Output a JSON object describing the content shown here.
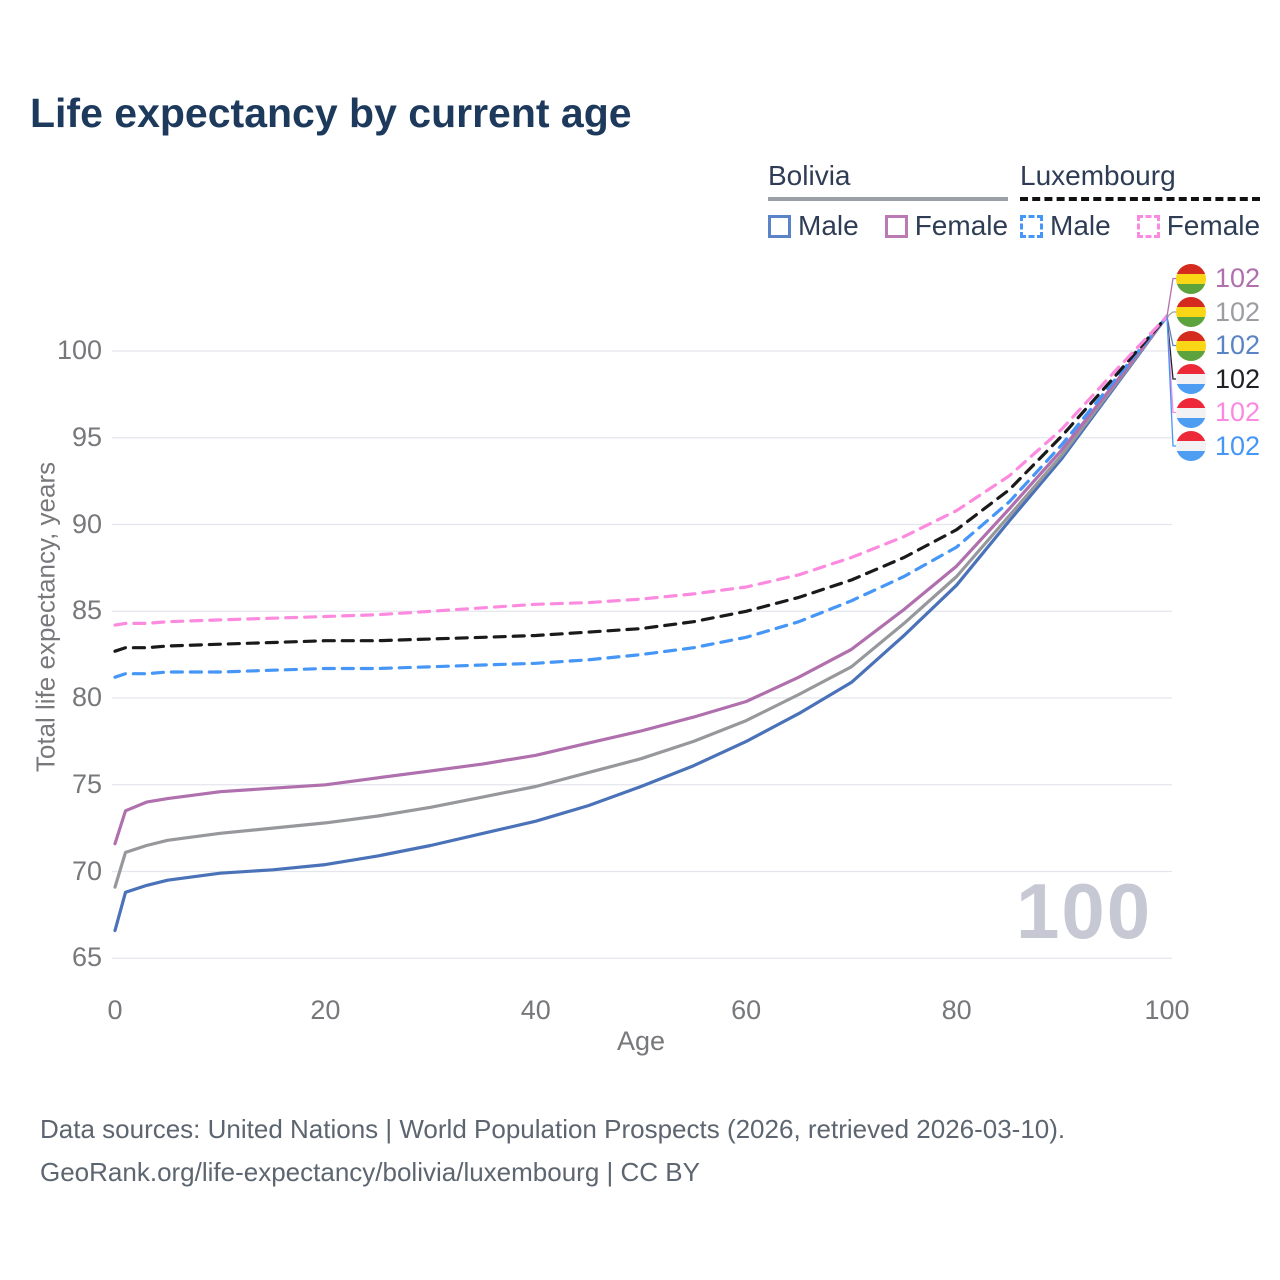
{
  "title": "Life expectancy by current age",
  "legend": {
    "bolivia": {
      "title": "Bolivia",
      "male": "Male",
      "female": "Female"
    },
    "luxembourg": {
      "title": "Luxembourg",
      "male": "Male",
      "female": "Female"
    }
  },
  "axes": {
    "y_title": "Total life expectancy, years",
    "x_title": "Age"
  },
  "watermark": "100",
  "footer": {
    "line1": "Data sources: United Nations | World Population Prospects (2026, retrieved 2026-03-10).",
    "line2": "GeoRank.org/life-expectancy/bolivia/luxembourg | CC BY"
  },
  "flags": {
    "bolivia": [
      "#d52b1e",
      "#f9d616",
      "#5ca23d"
    ],
    "luxembourg": [
      "#ed2939",
      "#f2f2f4",
      "#4d9df2"
    ]
  },
  "colors": {
    "title": "#1d3a5c",
    "bolivia_male": "#4a72b8",
    "bolivia_female": "#b06fad",
    "bolivia_both": "#97989c",
    "luxembourg_male": "#4596f7",
    "luxembourg_female": "#fc8be0",
    "luxembourg_both": "#1a1a1a",
    "gridline": "#e4e6ee",
    "axis_text": "#77787c"
  },
  "chart_data": {
    "type": "line",
    "title": "Life expectancy by current age",
    "xlabel": "Age",
    "ylabel": "Total life expectancy, years",
    "xlim": [
      0,
      100
    ],
    "ylim": [
      65,
      102
    ],
    "xticks": [
      0,
      20,
      40,
      60,
      80,
      100
    ],
    "yticks": [
      65,
      70,
      75,
      80,
      85,
      90,
      95,
      100
    ],
    "grid": true,
    "legend_position": "top-right",
    "series": [
      {
        "name": "Bolivia Male",
        "country": "Bolivia",
        "sex": "male",
        "color": "#4a72b8",
        "dash": false,
        "x": [
          0,
          1,
          3,
          5,
          10,
          15,
          20,
          25,
          30,
          35,
          40,
          45,
          50,
          55,
          60,
          65,
          70,
          75,
          80,
          85,
          90,
          95,
          100
        ],
        "y": [
          66.6,
          68.8,
          69.2,
          69.5,
          69.9,
          70.1,
          70.4,
          70.9,
          71.5,
          72.2,
          72.9,
          73.8,
          74.9,
          76.1,
          77.5,
          79.1,
          80.9,
          83.6,
          86.5,
          90.2,
          93.8,
          97.9,
          102
        ]
      },
      {
        "name": "Bolivia Both sexes",
        "country": "Bolivia",
        "sex": "both",
        "color": "#97989c",
        "dash": false,
        "x": [
          0,
          1,
          3,
          5,
          10,
          15,
          20,
          25,
          30,
          35,
          40,
          45,
          50,
          55,
          60,
          65,
          70,
          75,
          80,
          85,
          90,
          95,
          100
        ],
        "y": [
          69.1,
          71.1,
          71.5,
          71.8,
          72.2,
          72.5,
          72.8,
          73.2,
          73.7,
          74.3,
          74.9,
          75.7,
          76.5,
          77.5,
          78.7,
          80.2,
          81.8,
          84.3,
          87.0,
          90.5,
          94.0,
          98.0,
          102
        ]
      },
      {
        "name": "Bolivia Female",
        "country": "Bolivia",
        "sex": "female",
        "color": "#b06fad",
        "dash": false,
        "x": [
          0,
          1,
          3,
          5,
          10,
          15,
          20,
          25,
          30,
          35,
          40,
          45,
          50,
          55,
          60,
          65,
          70,
          75,
          80,
          85,
          90,
          95,
          100
        ],
        "y": [
          71.6,
          73.5,
          74.0,
          74.2,
          74.6,
          74.8,
          75.0,
          75.4,
          75.8,
          76.2,
          76.7,
          77.4,
          78.1,
          78.9,
          79.8,
          81.2,
          82.8,
          85.1,
          87.6,
          90.9,
          94.3,
          98.1,
          102
        ]
      },
      {
        "name": "Luxembourg Male",
        "country": "Luxembourg",
        "sex": "male",
        "color": "#4596f7",
        "dash": true,
        "x": [
          0,
          1,
          3,
          5,
          10,
          15,
          20,
          25,
          30,
          35,
          40,
          45,
          50,
          55,
          60,
          65,
          70,
          75,
          80,
          85,
          90,
          95,
          100
        ],
        "y": [
          81.2,
          81.4,
          81.4,
          81.5,
          81.5,
          81.6,
          81.7,
          81.7,
          81.8,
          81.9,
          82.0,
          82.2,
          82.5,
          82.9,
          83.5,
          84.4,
          85.6,
          87.0,
          88.7,
          91.3,
          94.6,
          98.3,
          102
        ]
      },
      {
        "name": "Luxembourg Both sexes",
        "country": "Luxembourg",
        "sex": "both",
        "color": "#1a1a1a",
        "dash": true,
        "x": [
          0,
          1,
          3,
          5,
          10,
          15,
          20,
          25,
          30,
          35,
          40,
          45,
          50,
          55,
          60,
          65,
          70,
          75,
          80,
          85,
          90,
          95,
          100
        ],
        "y": [
          82.7,
          82.9,
          82.9,
          83.0,
          83.1,
          83.2,
          83.3,
          83.3,
          83.4,
          83.5,
          83.6,
          83.8,
          84.0,
          84.4,
          85.0,
          85.8,
          86.8,
          88.1,
          89.7,
          92.0,
          95.1,
          98.5,
          102
        ]
      },
      {
        "name": "Luxembourg Female",
        "country": "Luxembourg",
        "sex": "female",
        "color": "#fc8be0",
        "dash": true,
        "x": [
          0,
          1,
          3,
          5,
          10,
          15,
          20,
          25,
          30,
          35,
          40,
          45,
          50,
          55,
          60,
          65,
          70,
          75,
          80,
          85,
          90,
          95,
          100
        ],
        "y": [
          84.2,
          84.3,
          84.3,
          84.4,
          84.5,
          84.6,
          84.7,
          84.8,
          85.0,
          85.2,
          85.4,
          85.5,
          85.7,
          86.0,
          86.4,
          87.1,
          88.1,
          89.3,
          90.8,
          92.8,
          95.5,
          98.8,
          102
        ]
      }
    ],
    "end_labels": [
      {
        "text": "102",
        "series": "Bolivia Female",
        "color": "#b06fad",
        "flag": "bolivia"
      },
      {
        "text": "102",
        "series": "Bolivia Both sexes",
        "color": "#9b9da2",
        "flag": "bolivia"
      },
      {
        "text": "102",
        "series": "Bolivia Male",
        "color": "#5b84c4",
        "flag": "bolivia"
      },
      {
        "text": "102",
        "series": "Luxembourg Both sexes",
        "color": "#202124",
        "flag": "luxembourg"
      },
      {
        "text": "102",
        "series": "Luxembourg Female",
        "color": "#f98ae2",
        "flag": "luxembourg"
      },
      {
        "text": "102",
        "series": "Luxembourg Male",
        "color": "#4596f7",
        "flag": "luxembourg"
      }
    ]
  }
}
